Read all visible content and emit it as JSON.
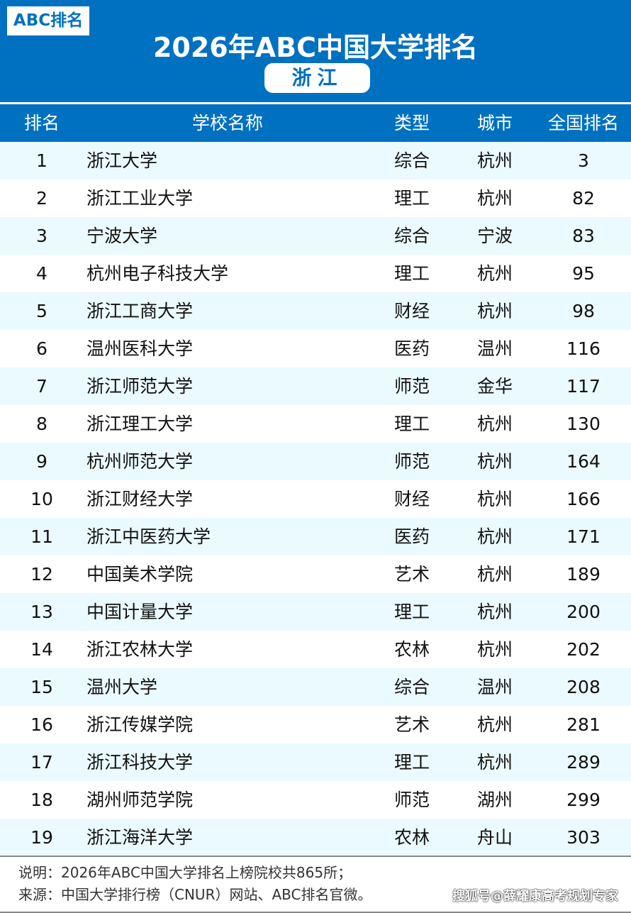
{
  "header": {
    "logo": "ABC排名",
    "title": "2026年ABC中国大学排名",
    "province": "浙江"
  },
  "columns": [
    "排名",
    "学校名称",
    "类型",
    "城市",
    "全国排名"
  ],
  "rows": [
    [
      "1",
      "浙江大学",
      "综合",
      "杭州",
      "3"
    ],
    [
      "2",
      "浙江工业大学",
      "理工",
      "杭州",
      "82"
    ],
    [
      "3",
      "宁波大学",
      "综合",
      "宁波",
      "83"
    ],
    [
      "4",
      "杭州电子科技大学",
      "理工",
      "杭州",
      "95"
    ],
    [
      "5",
      "浙江工商大学",
      "财经",
      "杭州",
      "98"
    ],
    [
      "6",
      "温州医科大学",
      "医药",
      "温州",
      "116"
    ],
    [
      "7",
      "浙江师范大学",
      "师范",
      "金华",
      "117"
    ],
    [
      "8",
      "浙江理工大学",
      "理工",
      "杭州",
      "130"
    ],
    [
      "9",
      "杭州师范大学",
      "师范",
      "杭州",
      "164"
    ],
    [
      "10",
      "浙江财经大学",
      "财经",
      "杭州",
      "166"
    ],
    [
      "11",
      "浙江中医药大学",
      "医药",
      "杭州",
      "171"
    ],
    [
      "12",
      "中国美术学院",
      "艺术",
      "杭州",
      "189"
    ],
    [
      "13",
      "中国计量大学",
      "理工",
      "杭州",
      "200"
    ],
    [
      "14",
      "浙江农林大学",
      "农林",
      "杭州",
      "202"
    ],
    [
      "15",
      "温州大学",
      "综合",
      "温州",
      "208"
    ],
    [
      "16",
      "浙江传媒学院",
      "艺术",
      "杭州",
      "281"
    ],
    [
      "17",
      "浙江科技大学",
      "理工",
      "杭州",
      "289"
    ],
    [
      "18",
      "湖州师范学院",
      "师范",
      "湖州",
      "299"
    ],
    [
      "19",
      "浙江海洋大学",
      "农林",
      "舟山",
      "303"
    ]
  ],
  "footer": {
    "note": "说明：2026年ABC中国大学排名上榜院校共865所；",
    "source": "来源：中国大学排行榜（CNUR）网站、ABC排名官微。",
    "watermark": "搜狐号@薛耀康高考规划专家"
  },
  "colors": {
    "header_blue": "#0070c0",
    "row_alt": "#eafafe"
  }
}
